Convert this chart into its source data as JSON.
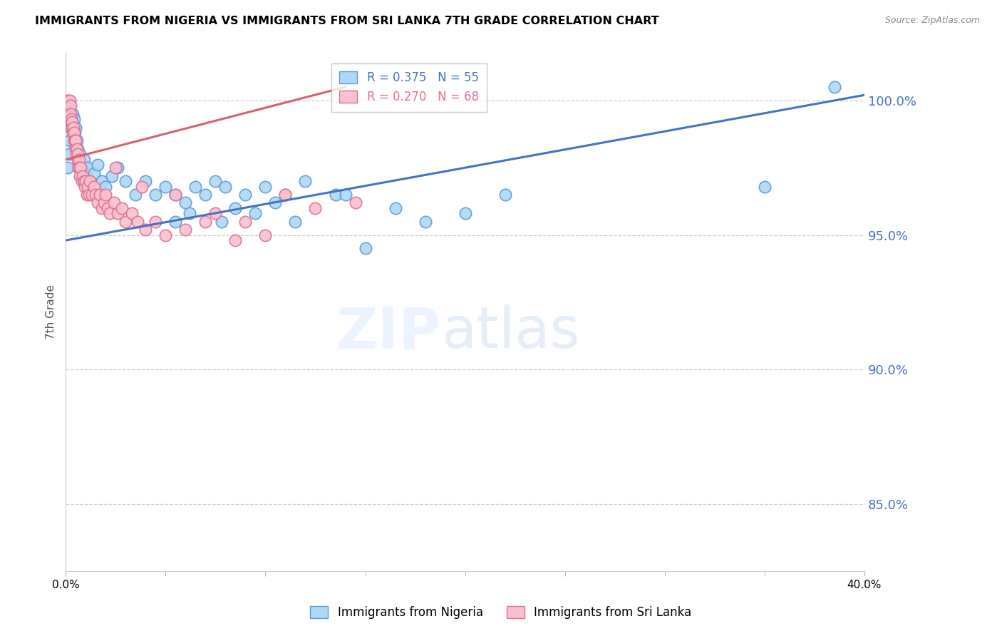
{
  "title": "IMMIGRANTS FROM NIGERIA VS IMMIGRANTS FROM SRI LANKA 7TH GRADE CORRELATION CHART",
  "source": "Source: ZipAtlas.com",
  "ylabel": "7th Grade",
  "y_ticks": [
    85.0,
    90.0,
    95.0,
    100.0
  ],
  "x_min": 0.0,
  "x_max": 40.0,
  "y_min": 82.5,
  "y_max": 101.8,
  "nigeria_color": "#add8f7",
  "nigeria_edge_color": "#5b9bd5",
  "srilanka_color": "#f9c0d0",
  "srilanka_edge_color": "#e07090",
  "nigeria_line_color": "#4472c4",
  "srilanka_line_color": "#d9606e",
  "legend_nigeria_label": "Immigrants from Nigeria",
  "legend_srilanka_label": "Immigrants from Sri Lanka",
  "R_nigeria": 0.375,
  "N_nigeria": 55,
  "R_srilanka": 0.27,
  "N_srilanka": 68,
  "nigeria_line_x": [
    0.0,
    40.0
  ],
  "nigeria_line_y": [
    94.8,
    100.2
  ],
  "srilanka_line_x": [
    0.0,
    14.0
  ],
  "srilanka_line_y": [
    97.8,
    100.5
  ],
  "nig_x": [
    0.1,
    0.15,
    0.2,
    0.25,
    0.3,
    0.35,
    0.4,
    0.45,
    0.5,
    0.55,
    0.6,
    0.65,
    0.7,
    0.8,
    0.9,
    1.0,
    1.1,
    1.2,
    1.4,
    1.6,
    1.8,
    2.0,
    2.3,
    2.6,
    3.0,
    3.5,
    4.0,
    4.5,
    5.0,
    5.5,
    6.0,
    6.5,
    7.0,
    7.5,
    8.0,
    9.0,
    10.0,
    11.0,
    12.0,
    13.5,
    5.5,
    6.2,
    7.8,
    8.5,
    9.5,
    10.5,
    11.5,
    14.0,
    15.0,
    16.5,
    18.0,
    20.0,
    22.0,
    35.0,
    38.5
  ],
  "nig_y": [
    97.5,
    98.0,
    98.5,
    99.0,
    99.2,
    99.5,
    99.3,
    98.8,
    99.0,
    98.5,
    98.2,
    97.8,
    98.0,
    97.5,
    97.8,
    97.2,
    97.5,
    97.0,
    97.3,
    97.6,
    97.0,
    96.8,
    97.2,
    97.5,
    97.0,
    96.5,
    97.0,
    96.5,
    96.8,
    96.5,
    96.2,
    96.8,
    96.5,
    97.0,
    96.8,
    96.5,
    96.8,
    96.5,
    97.0,
    96.5,
    95.5,
    95.8,
    95.5,
    96.0,
    95.8,
    96.2,
    95.5,
    96.5,
    94.5,
    96.0,
    95.5,
    95.8,
    96.5,
    96.8,
    100.5
  ],
  "sri_x": [
    0.05,
    0.08,
    0.1,
    0.12,
    0.15,
    0.18,
    0.2,
    0.22,
    0.25,
    0.28,
    0.3,
    0.32,
    0.35,
    0.38,
    0.4,
    0.42,
    0.45,
    0.48,
    0.5,
    0.52,
    0.55,
    0.58,
    0.6,
    0.62,
    0.65,
    0.68,
    0.7,
    0.75,
    0.8,
    0.85,
    0.9,
    0.95,
    1.0,
    1.05,
    1.1,
    1.15,
    1.2,
    1.3,
    1.4,
    1.5,
    1.6,
    1.7,
    1.8,
    1.9,
    2.0,
    2.1,
    2.2,
    2.4,
    2.6,
    2.8,
    3.0,
    3.3,
    3.6,
    4.0,
    4.5,
    5.0,
    6.0,
    7.0,
    8.5,
    10.0,
    2.5,
    3.8,
    5.5,
    7.5,
    9.0,
    11.0,
    12.5,
    14.5
  ],
  "sri_y": [
    99.5,
    99.8,
    100.0,
    99.7,
    99.5,
    99.8,
    100.0,
    99.8,
    99.5,
    99.3,
    99.0,
    99.2,
    98.8,
    99.0,
    98.5,
    98.8,
    98.5,
    98.2,
    98.5,
    98.0,
    98.2,
    97.8,
    98.0,
    97.5,
    97.8,
    97.5,
    97.2,
    97.5,
    97.0,
    97.2,
    97.0,
    96.8,
    97.0,
    96.5,
    96.8,
    96.5,
    97.0,
    96.5,
    96.8,
    96.5,
    96.2,
    96.5,
    96.0,
    96.2,
    96.5,
    96.0,
    95.8,
    96.2,
    95.8,
    96.0,
    95.5,
    95.8,
    95.5,
    95.2,
    95.5,
    95.0,
    95.2,
    95.5,
    94.8,
    95.0,
    97.5,
    96.8,
    96.5,
    95.8,
    95.5,
    96.5,
    96.0,
    96.2
  ]
}
